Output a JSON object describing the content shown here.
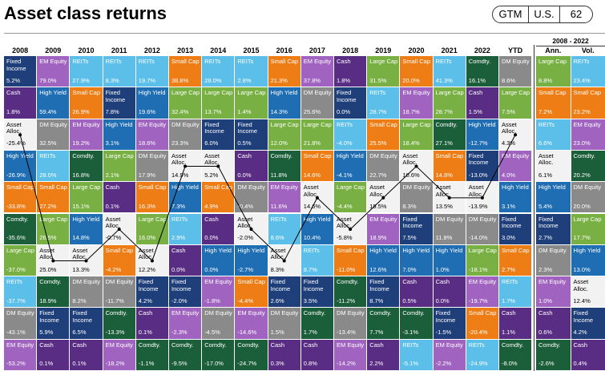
{
  "header": {
    "title": "Asset class returns",
    "badges": [
      "GTM",
      "U.S.",
      "62"
    ]
  },
  "table": {
    "group_label": "2008 - 2022",
    "colors": {
      "Fixed Income": "#1f3f7a",
      "Cash": "#5a2d84",
      "Asset Alloc.": "#f2f2f2",
      "High Yield": "#1f6db3",
      "Small Cap": "#ef7d15",
      "Comdty.": "#1b5e3a",
      "Large Cap": "#78b043",
      "REITs": "#5bbfe9",
      "DM Equity": "#8a8a8a",
      "EM Equity": "#a064c0"
    },
    "columns": [
      {
        "label": "2008",
        "cells": [
          [
            "Fixed Income",
            "5.2%"
          ],
          [
            "Cash",
            "1.8%"
          ],
          [
            "Asset Alloc.",
            "-25.4%"
          ],
          [
            "High Yield",
            "-26.9%"
          ],
          [
            "Small Cap",
            "-33.8%"
          ],
          [
            "Comdty.",
            "-35.6%"
          ],
          [
            "Large Cap",
            "-37.0%"
          ],
          [
            "REITs",
            "-37.7%"
          ],
          [
            "DM Equity",
            "-43.1%"
          ],
          [
            "EM Equity",
            "-53.2%"
          ]
        ]
      },
      {
        "label": "2009",
        "cells": [
          [
            "EM Equity",
            "79.0%"
          ],
          [
            "High Yield",
            "59.4%"
          ],
          [
            "DM Equity",
            "32.5%"
          ],
          [
            "REITs",
            "28.0%"
          ],
          [
            "Small Cap",
            "27.2%"
          ],
          [
            "Large Cap",
            "26.5%"
          ],
          [
            "Asset Alloc.",
            "25.0%"
          ],
          [
            "Comdty.",
            "18.9%"
          ],
          [
            "Fixed Income",
            "5.9%"
          ],
          [
            "Cash",
            "0.1%"
          ]
        ]
      },
      {
        "label": "2010",
        "cells": [
          [
            "REITs",
            "27.9%"
          ],
          [
            "Small Cap",
            "26.9%"
          ],
          [
            "EM Equity",
            "19.2%"
          ],
          [
            "Comdty.",
            "16.8%"
          ],
          [
            "Large Cap",
            "15.1%"
          ],
          [
            "High Yield",
            "14.8%"
          ],
          [
            "Asset Alloc.",
            "13.3%"
          ],
          [
            "DM Equity",
            "8.2%"
          ],
          [
            "Fixed Income",
            "6.5%"
          ],
          [
            "Cash",
            "0.1%"
          ]
        ]
      },
      {
        "label": "2011",
        "cells": [
          [
            "REITs",
            "8.3%"
          ],
          [
            "Fixed Income",
            "7.8%"
          ],
          [
            "High Yield",
            "3.1%"
          ],
          [
            "Large Cap",
            "2.1%"
          ],
          [
            "Cash",
            "0.1%"
          ],
          [
            "Asset Alloc.",
            "-0.7%"
          ],
          [
            "Small Cap",
            "-4.2%"
          ],
          [
            "DM Equity",
            "-11.7%"
          ],
          [
            "Comdty.",
            "-13.3%"
          ],
          [
            "EM Equity",
            "-18.2%"
          ]
        ]
      },
      {
        "label": "2012",
        "cells": [
          [
            "REITs",
            "19.7%"
          ],
          [
            "High Yield",
            "19.6%"
          ],
          [
            "EM Equity",
            "18.6%"
          ],
          [
            "DM Equity",
            "17.9%"
          ],
          [
            "Small Cap",
            "16.3%"
          ],
          [
            "Large Cap",
            "16.0%"
          ],
          [
            "Asset Alloc.",
            "12.2%"
          ],
          [
            "Fixed Income",
            "4.2%"
          ],
          [
            "Cash",
            "0.1%"
          ],
          [
            "Comdty.",
            "-1.1%"
          ]
        ]
      },
      {
        "label": "2013",
        "cells": [
          [
            "Small Cap",
            "38.8%"
          ],
          [
            "Large Cap",
            "32.4%"
          ],
          [
            "DM Equity",
            "23.3%"
          ],
          [
            "Asset Alloc.",
            "14.9%"
          ],
          [
            "High Yield",
            "7.3%"
          ],
          [
            "REITs",
            "2.9%"
          ],
          [
            "Cash",
            "0.0%"
          ],
          [
            "Fixed Income",
            "-2.0%"
          ],
          [
            "EM Equity",
            "-2.3%"
          ],
          [
            "Comdty.",
            "-9.5%"
          ]
        ]
      },
      {
        "label": "2014",
        "cells": [
          [
            "REITs",
            "28.0%"
          ],
          [
            "Large Cap",
            "13.7%"
          ],
          [
            "Fixed Income",
            "6.0%"
          ],
          [
            "Asset Alloc.",
            "5.2%"
          ],
          [
            "Small Cap",
            "4.9%"
          ],
          [
            "Cash",
            "0.0%"
          ],
          [
            "High Yield",
            "0.0%"
          ],
          [
            "EM Equity",
            "-1.8%"
          ],
          [
            "DM Equity",
            "-4.5%"
          ],
          [
            "Comdty.",
            "-17.0%"
          ]
        ]
      },
      {
        "label": "2015",
        "cells": [
          [
            "REITs",
            "2.8%"
          ],
          [
            "Large Cap",
            "1.4%"
          ],
          [
            "Fixed Income",
            "0.5%"
          ],
          [
            "Cash",
            "0.0%"
          ],
          [
            "DM Equity",
            "-0.4%"
          ],
          [
            "Asset Alloc.",
            "-2.0%"
          ],
          [
            "High Yield",
            "-2.7%"
          ],
          [
            "Small Cap",
            "-4.4%"
          ],
          [
            "EM Equity",
            "-14.6%"
          ],
          [
            "Comdty.",
            "-24.7%"
          ]
        ]
      },
      {
        "label": "2016",
        "cells": [
          [
            "Small Cap",
            "21.3%"
          ],
          [
            "High Yield",
            "14.3%"
          ],
          [
            "Large Cap",
            "12.0%"
          ],
          [
            "Comdty.",
            "11.8%"
          ],
          [
            "EM Equity",
            "11.6%"
          ],
          [
            "REITs",
            "8.6%"
          ],
          [
            "Asset Alloc.",
            "8.3%"
          ],
          [
            "Fixed Income",
            "2.6%"
          ],
          [
            "DM Equity",
            "1.5%"
          ],
          [
            "Cash",
            "0.3%"
          ]
        ]
      },
      {
        "label": "2017",
        "cells": [
          [
            "EM Equity",
            "37.8%"
          ],
          [
            "DM Equity",
            "25.6%"
          ],
          [
            "Large Cap",
            "21.8%"
          ],
          [
            "Small Cap",
            "14.6%"
          ],
          [
            "Asset Alloc.",
            "14.6%"
          ],
          [
            "High Yield",
            "10.4%"
          ],
          [
            "REITs",
            "8.7%"
          ],
          [
            "Fixed Income",
            "3.5%"
          ],
          [
            "Comdty.",
            "1.7%"
          ],
          [
            "Cash",
            "0.8%"
          ]
        ]
      },
      {
        "label": "2018",
        "cells": [
          [
            "Cash",
            "1.8%"
          ],
          [
            "Fixed Income",
            "0.0%"
          ],
          [
            "REITs",
            "-4.0%"
          ],
          [
            "High Yield",
            "-4.1%"
          ],
          [
            "Large Cap",
            "-4.4%"
          ],
          [
            "Asset Alloc.",
            "-5.8%"
          ],
          [
            "Small Cap",
            "-11.0%"
          ],
          [
            "Comdty.",
            "-11.2%"
          ],
          [
            "DM Equity",
            "-13.4%"
          ],
          [
            "EM Equity",
            "-14.2%"
          ]
        ]
      },
      {
        "label": "2019",
        "cells": [
          [
            "Large Cap",
            "31.5%"
          ],
          [
            "REITs",
            "28.7%"
          ],
          [
            "Small Cap",
            "25.5%"
          ],
          [
            "DM Equity",
            "22.7%"
          ],
          [
            "Asset Alloc.",
            "19.5%"
          ],
          [
            "EM Equity",
            "18.9%"
          ],
          [
            "High Yield",
            "12.6%"
          ],
          [
            "Fixed Income",
            "8.7%"
          ],
          [
            "Comdty.",
            "7.7%"
          ],
          [
            "Cash",
            "2.2%"
          ]
        ]
      },
      {
        "label": "2020",
        "cells": [
          [
            "Small Cap",
            "20.0%"
          ],
          [
            "EM Equity",
            "18.7%"
          ],
          [
            "Large Cap",
            "18.4%"
          ],
          [
            "Asset Alloc.",
            "10.6%"
          ],
          [
            "DM Equity",
            "8.3%"
          ],
          [
            "Fixed Income",
            "7.5%"
          ],
          [
            "High Yield",
            "7.0%"
          ],
          [
            "Cash",
            "0.5%"
          ],
          [
            "Comdty.",
            "-3.1%"
          ],
          [
            "REITs",
            "-5.1%"
          ]
        ]
      },
      {
        "label": "2021",
        "cells": [
          [
            "REITs",
            "41.3%"
          ],
          [
            "Large Cap",
            "28.7%"
          ],
          [
            "Comdty.",
            "27.1%"
          ],
          [
            "Small Cap",
            "14.8%"
          ],
          [
            "Asset Alloc.",
            "13.5%"
          ],
          [
            "DM Equity",
            "11.8%"
          ],
          [
            "High Yield",
            "1.0%"
          ],
          [
            "Cash",
            "0.0%"
          ],
          [
            "Fixed Income",
            "-1.5%"
          ],
          [
            "EM Equity",
            "-2.2%"
          ]
        ]
      },
      {
        "label": "2022",
        "cells": [
          [
            "Comdty.",
            "16.1%"
          ],
          [
            "Cash",
            "1.5%"
          ],
          [
            "High Yield",
            "-12.7%"
          ],
          [
            "Fixed Income",
            "-13.0%"
          ],
          [
            "Asset Alloc.",
            "-13.9%"
          ],
          [
            "DM Equity",
            "-14.0%"
          ],
          [
            "Large Cap",
            "-18.1%"
          ],
          [
            "EM Equity",
            "-19.7%"
          ],
          [
            "Small Cap",
            "-20.4%"
          ],
          [
            "REITs",
            "-24.9%"
          ]
        ]
      },
      {
        "label": "YTD",
        "cells": [
          [
            "DM Equity",
            "8.6%"
          ],
          [
            "Large Cap",
            "7.5%"
          ],
          [
            "Asset Alloc.",
            "4.3%"
          ],
          [
            "EM Equity",
            "4.0%"
          ],
          [
            "High Yield",
            "3.1%"
          ],
          [
            "Fixed Income",
            "3.0%"
          ],
          [
            "Small Cap",
            "2.7%"
          ],
          [
            "REITs",
            "1.7%"
          ],
          [
            "Cash",
            "1.1%"
          ],
          [
            "Comdty.",
            "-8.0%"
          ]
        ]
      },
      {
        "label": "Ann.",
        "cells": [
          [
            "Large Cap",
            "8.8%"
          ],
          [
            "Small Cap",
            "7.2%"
          ],
          [
            "REITs",
            "6.6%"
          ],
          [
            "Asset Alloc.",
            "6.1%"
          ],
          [
            "High Yield",
            "5.4%"
          ],
          [
            "Fixed Income",
            "2.7%"
          ],
          [
            "DM Equity",
            "2.3%"
          ],
          [
            "EM Equity",
            "1.0%"
          ],
          [
            "Cash",
            "0.6%"
          ],
          [
            "Comdty.",
            "-2.6%"
          ]
        ]
      },
      {
        "label": "Vol.",
        "cells": [
          [
            "REITs",
            "23.4%"
          ],
          [
            "Small Cap",
            "23.2%"
          ],
          [
            "EM Equity",
            "23.0%"
          ],
          [
            "Comdty.",
            "20.2%"
          ],
          [
            "DM Equity",
            "20.0%"
          ],
          [
            "Large Cap",
            "17.7%"
          ],
          [
            "High Yield",
            "13.0%"
          ],
          [
            "Asset Alloc.",
            "12.4%"
          ],
          [
            "Fixed Income",
            "4.2%"
          ],
          [
            "Cash",
            "0.4%"
          ]
        ]
      }
    ]
  }
}
